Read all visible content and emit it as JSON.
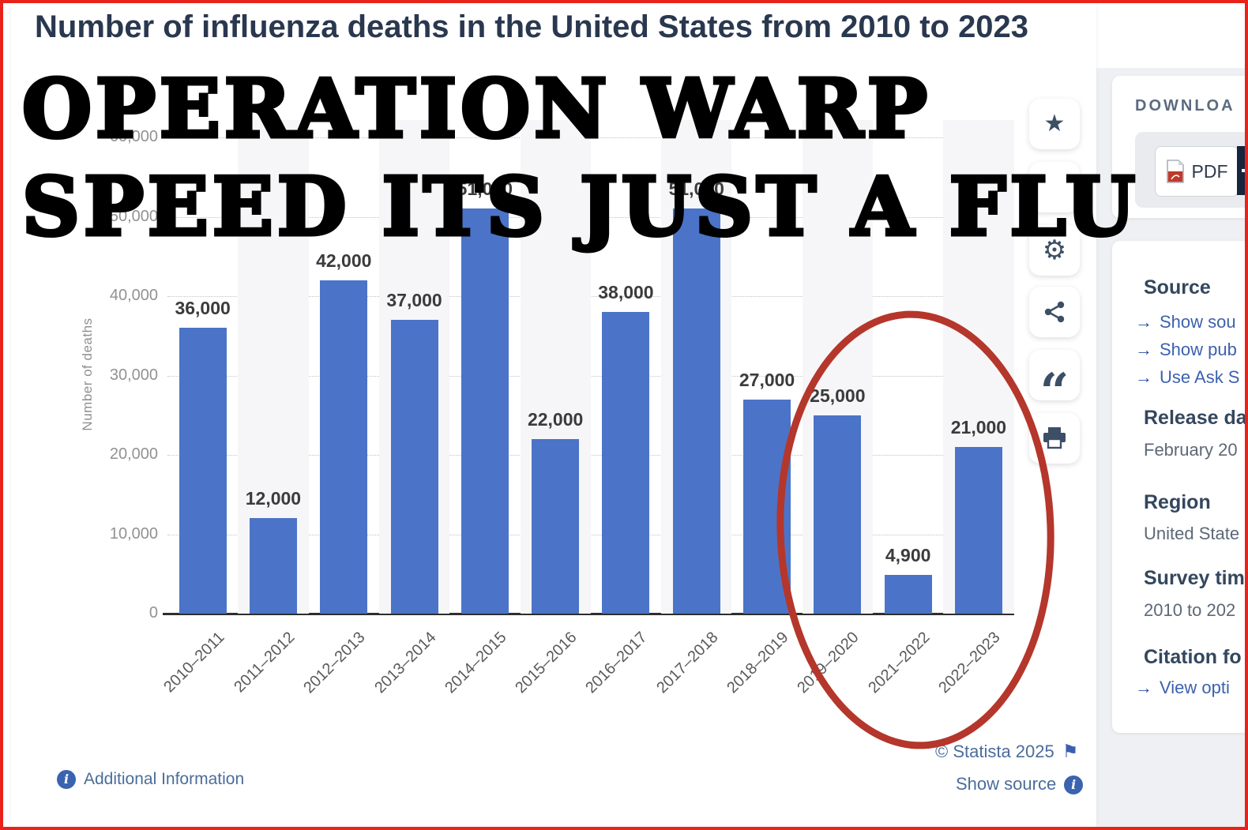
{
  "title": "Number of influenza deaths in the United States from 2010 to 2023",
  "overlay_text": {
    "line1": "OPERATION WARP",
    "line2": "SPEED ITS JUST A FLU"
  },
  "chart_data": {
    "type": "bar",
    "title": "Number of influenza deaths in the United States from 2010 to 2023",
    "xlabel": "",
    "ylabel": "Number of deaths",
    "ylim": [
      0,
      60000
    ],
    "grid": "horizontal dotted",
    "bar_color": "#4b74c8",
    "categories": [
      "2010–2011",
      "2011–2012",
      "2012–2013",
      "2013–2014",
      "2014–2015",
      "2015–2016",
      "2016–2017",
      "2017–2018",
      "2018–2019",
      "2019–2020",
      "2021–2022",
      "2022–2023"
    ],
    "values": [
      36000,
      12000,
      42000,
      37000,
      51000,
      22000,
      38000,
      51000,
      27000,
      25000,
      4900,
      21000
    ],
    "value_labels": [
      "36,000",
      "12,000",
      "42,000",
      "37,000",
      "51,000",
      "22,000",
      "38,000",
      "51,000",
      "27,000",
      "25,000",
      "4,900",
      "21,000"
    ],
    "ytick_values": [
      0,
      10000,
      20000,
      30000,
      40000,
      50000,
      60000
    ],
    "ytick_labels": [
      "0",
      "10,000",
      "20,000",
      "30,000",
      "40,000",
      "50,000",
      "60,000"
    ],
    "annotation": {
      "shape": "hand-drawn red ellipse",
      "color": "#b5362b",
      "circled_categories": [
        "2019–2020",
        "2021–2022",
        "2022–2023"
      ]
    }
  },
  "toolbar": {
    "buttons": [
      "star",
      "obscured",
      "settings",
      "share",
      "cite",
      "print"
    ]
  },
  "download_panel": {
    "header": "DOWNLOA",
    "pdf_label": "PDF"
  },
  "info_panel": {
    "source_heading": "Source",
    "source_links": [
      "Show sou",
      "Show pub",
      "Use Ask S"
    ],
    "release_heading": "Release da",
    "release_value": "February 20",
    "region_heading": "Region",
    "region_value": "United State",
    "survey_heading": "Survey tim",
    "survey_value": "2010 to 202",
    "citation_heading": "Citation fo",
    "citation_link": "View opti"
  },
  "footer": {
    "additional_info": "Additional Information",
    "copyright": "© Statista 2025",
    "show_source": "Show source"
  }
}
